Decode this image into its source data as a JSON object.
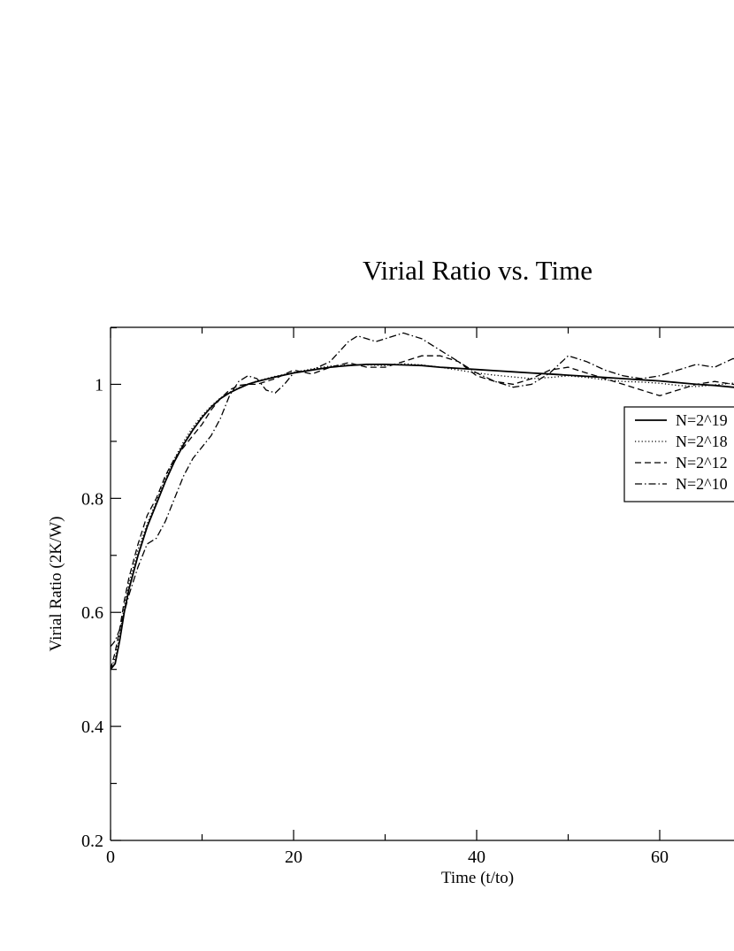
{
  "chart_data": {
    "type": "line",
    "title": "Virial Ratio vs. Time",
    "xlabel": "Time (t/to)",
    "ylabel": "Virial Ratio (2K/W)",
    "xlim": [
      0,
      70
    ],
    "ylim": [
      0.2,
      1.1
    ],
    "x_ticks": [
      0,
      20,
      40,
      60
    ],
    "y_ticks": [
      0.2,
      0.4,
      0.6,
      0.8,
      1
    ],
    "x_tick_labels": [
      "0",
      "20",
      "40",
      "60"
    ],
    "y_tick_labels": [
      "0.2",
      "0.4",
      "0.6",
      "0.8",
      "1"
    ],
    "legend_position": "right",
    "series": [
      {
        "name": "N=2^19",
        "style": "solid",
        "x": [
          0,
          0.5,
          1,
          1.5,
          2,
          3,
          4,
          5,
          6,
          7,
          8,
          9,
          10,
          11,
          12,
          13,
          14,
          15,
          16,
          18,
          20,
          22,
          24,
          26,
          28,
          30,
          32,
          34,
          36,
          38,
          40,
          42,
          44,
          46,
          48,
          50,
          52,
          54,
          56,
          58,
          60,
          62,
          64,
          66,
          68,
          70
        ],
        "y": [
          0.5,
          0.51,
          0.55,
          0.6,
          0.64,
          0.7,
          0.75,
          0.79,
          0.83,
          0.865,
          0.895,
          0.92,
          0.942,
          0.96,
          0.975,
          0.985,
          0.993,
          1.0,
          1.005,
          1.013,
          1.02,
          1.025,
          1.03,
          1.033,
          1.035,
          1.035,
          1.034,
          1.033,
          1.03,
          1.028,
          1.026,
          1.024,
          1.022,
          1.02,
          1.018,
          1.016,
          1.014,
          1.012,
          1.01,
          1.008,
          1.006,
          1.003,
          1.0,
          0.998,
          0.995,
          0.992
        ]
      },
      {
        "name": "N=2^18",
        "style": "dotted",
        "x": [
          0,
          0.5,
          1,
          1.5,
          2,
          3,
          4,
          5,
          6,
          7,
          8,
          9,
          10,
          11,
          12,
          13,
          14,
          15,
          16,
          18,
          20,
          22,
          24,
          26,
          28,
          30,
          32,
          34,
          36,
          38,
          40,
          42,
          44,
          46,
          48,
          50,
          52,
          54,
          56,
          58,
          60,
          62,
          64,
          66,
          68,
          70
        ],
        "y": [
          0.5,
          0.52,
          0.56,
          0.61,
          0.65,
          0.71,
          0.755,
          0.795,
          0.835,
          0.87,
          0.9,
          0.925,
          0.945,
          0.962,
          0.976,
          0.986,
          0.994,
          1.0,
          1.006,
          1.014,
          1.021,
          1.027,
          1.032,
          1.034,
          1.034,
          1.033,
          1.036,
          1.034,
          1.03,
          1.025,
          1.02,
          1.016,
          1.013,
          1.01,
          1.012,
          1.015,
          1.012,
          1.008,
          1.005,
          1.004,
          1.002,
          0.998,
          0.996,
          0.999,
          1.002,
          0.998
        ]
      },
      {
        "name": "N=2^12",
        "style": "dashed",
        "x": [
          0,
          0.5,
          1,
          1.5,
          2,
          3,
          4,
          5,
          6,
          7,
          8,
          9,
          10,
          11,
          12,
          13,
          14,
          15,
          16,
          18,
          20,
          22,
          24,
          26,
          28,
          30,
          32,
          34,
          36,
          38,
          40,
          42,
          44,
          46,
          48,
          50,
          52,
          54,
          56,
          58,
          60,
          62,
          64,
          66,
          68,
          70
        ],
        "y": [
          0.5,
          0.53,
          0.57,
          0.62,
          0.66,
          0.72,
          0.77,
          0.8,
          0.84,
          0.87,
          0.89,
          0.91,
          0.93,
          0.955,
          0.975,
          0.99,
          0.998,
          1.0,
          1.0,
          1.01,
          1.025,
          1.018,
          1.03,
          1.038,
          1.03,
          1.03,
          1.04,
          1.05,
          1.05,
          1.04,
          1.015,
          1.005,
          1.0,
          1.01,
          1.025,
          1.03,
          1.02,
          1.01,
          1.0,
          0.99,
          0.98,
          0.99,
          1.0,
          1.005,
          1.0,
          0.995
        ]
      },
      {
        "name": "N=2^10",
        "style": "dashdot",
        "x": [
          0,
          0.5,
          1,
          1.5,
          2,
          3,
          4,
          5,
          6,
          7,
          8,
          9,
          10,
          11,
          12,
          13,
          14,
          15,
          16,
          17,
          18,
          19,
          20,
          22,
          24,
          26,
          27,
          28,
          29,
          30,
          32,
          34,
          36,
          38,
          40,
          42,
          44,
          46,
          48,
          50,
          52,
          54,
          56,
          58,
          60,
          62,
          64,
          66,
          68,
          70
        ],
        "y": [
          0.54,
          0.55,
          0.57,
          0.6,
          0.63,
          0.68,
          0.72,
          0.73,
          0.76,
          0.8,
          0.84,
          0.87,
          0.89,
          0.91,
          0.94,
          0.98,
          1.005,
          1.015,
          1.01,
          0.99,
          0.985,
          1.0,
          1.02,
          1.025,
          1.04,
          1.075,
          1.085,
          1.08,
          1.075,
          1.08,
          1.09,
          1.08,
          1.06,
          1.04,
          1.02,
          1.005,
          0.995,
          1.0,
          1.02,
          1.05,
          1.04,
          1.025,
          1.015,
          1.01,
          1.015,
          1.025,
          1.035,
          1.03,
          1.045,
          1.04
        ]
      }
    ]
  }
}
